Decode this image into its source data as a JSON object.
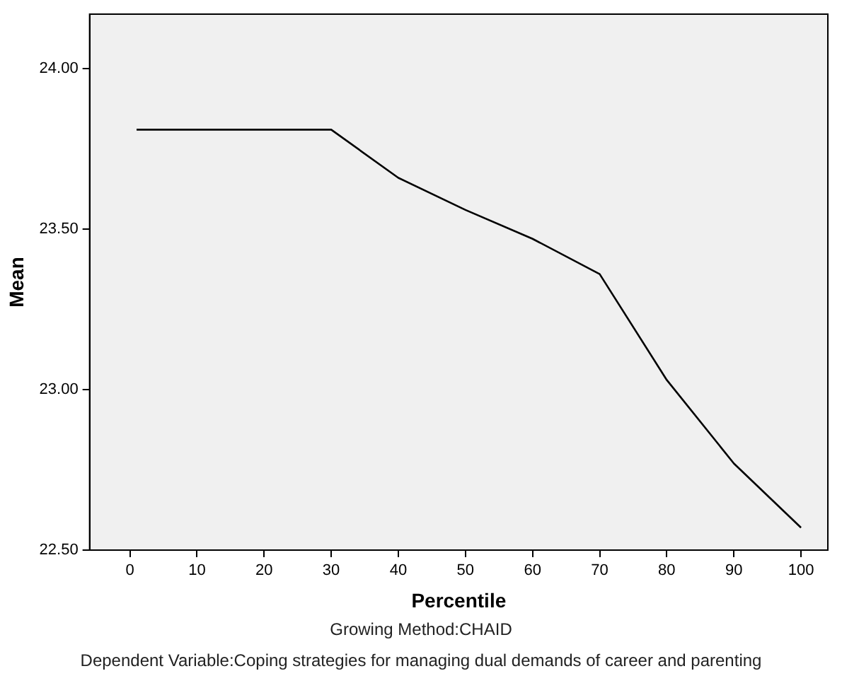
{
  "chart_data": {
    "type": "line",
    "xlabel": "Percentile",
    "ylabel": "Mean",
    "x": [
      1,
      30,
      40,
      50,
      60,
      70,
      80,
      90,
      100
    ],
    "series": [
      {
        "color": "#000000",
        "values": [
          23.81,
          23.81,
          23.66,
          23.56,
          23.47,
          23.36,
          23.03,
          22.77,
          22.57
        ]
      }
    ],
    "xlim": [
      -6,
      104
    ],
    "xticks": [
      0,
      10,
      20,
      30,
      40,
      50,
      60,
      70,
      80,
      90,
      100
    ],
    "ylim": [
      22.5,
      24.17
    ],
    "yticks": [
      {
        "value": 22.5,
        "label": "22.50"
      },
      {
        "value": 23,
        "label": "23.00"
      },
      {
        "value": 23.5,
        "label": "23.50"
      },
      {
        "value": 24,
        "label": "24.00"
      }
    ],
    "grid": false,
    "legend": false,
    "marker": "none",
    "line_style": "solid",
    "annotations": [
      "Growing Method:CHAID",
      "Dependent Variable:Coping strategies for managing dual demands of career and parenting"
    ]
  }
}
